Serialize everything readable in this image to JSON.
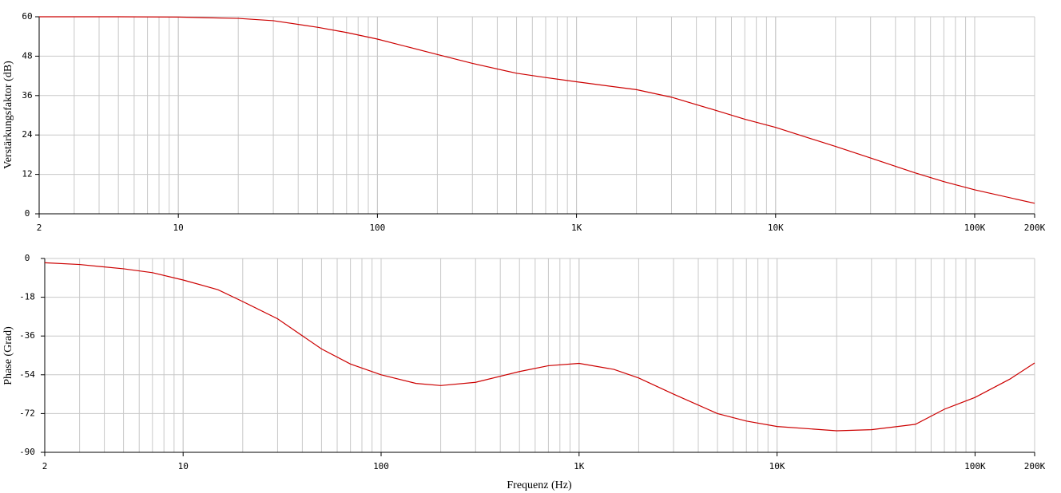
{
  "chart_data": [
    {
      "type": "line",
      "ylabel": "Verstärkungsfaktor (dB)",
      "log_x": true,
      "grid": true,
      "color": "#cc0000",
      "x": [
        2,
        5,
        10,
        20,
        30,
        50,
        70,
        100,
        200,
        300,
        500,
        700,
        1000,
        2000,
        3000,
        5000,
        7000,
        10000,
        20000,
        30000,
        50000,
        70000,
        100000,
        200000
      ],
      "values": [
        60,
        60,
        59.9,
        59.5,
        58.8,
        56.8,
        55.2,
        53.2,
        48.5,
        45.8,
        42.8,
        41.5,
        40.2,
        37.8,
        35.5,
        31.5,
        28.8,
        26.3,
        20.5,
        17,
        12.5,
        9.8,
        7.3,
        3.2
      ],
      "xlim": [
        2,
        200000
      ],
      "ylim": [
        0,
        60
      ],
      "xticks": [
        2,
        10,
        100,
        {
          "value": 1000,
          "label": "1K"
        },
        {
          "value": 10000,
          "label": "10K"
        },
        {
          "value": 100000,
          "label": "100K"
        },
        {
          "value": 200000,
          "label": "200K"
        }
      ],
      "yticks": [
        0,
        12,
        24,
        36,
        48,
        60
      ]
    },
    {
      "type": "line",
      "ylabel": "Phase (Grad)",
      "xlabel": "Frequenz (Hz)",
      "log_x": true,
      "grid": true,
      "color": "#cc0000",
      "x": [
        2,
        3,
        5,
        7,
        10,
        15,
        20,
        30,
        50,
        70,
        100,
        150,
        200,
        300,
        500,
        700,
        1000,
        1500,
        2000,
        3000,
        5000,
        7000,
        10000,
        20000,
        30000,
        50000,
        70000,
        100000,
        150000,
        200000
      ],
      "values": [
        -2,
        -2.8,
        -4.8,
        -6.6,
        -10,
        -14.5,
        -20,
        -28,
        -42,
        -49,
        -54,
        -58,
        -59,
        -57.5,
        -52.5,
        -49.8,
        -48.7,
        -51.5,
        -55.5,
        -63,
        -72,
        -75.5,
        -78,
        -80,
        -79.5,
        -77,
        -70,
        -64.5,
        -56,
        -48.5
      ],
      "xlim": [
        2,
        200000
      ],
      "ylim": [
        -90,
        0
      ],
      "xticks": [
        2,
        10,
        100,
        {
          "value": 1000,
          "label": "1K"
        },
        {
          "value": 10000,
          "label": "10K"
        },
        {
          "value": 100000,
          "label": "100K"
        },
        {
          "value": 200000,
          "label": "200K"
        }
      ],
      "yticks": [
        -90,
        -72,
        -54,
        -36,
        -18,
        0
      ]
    }
  ]
}
